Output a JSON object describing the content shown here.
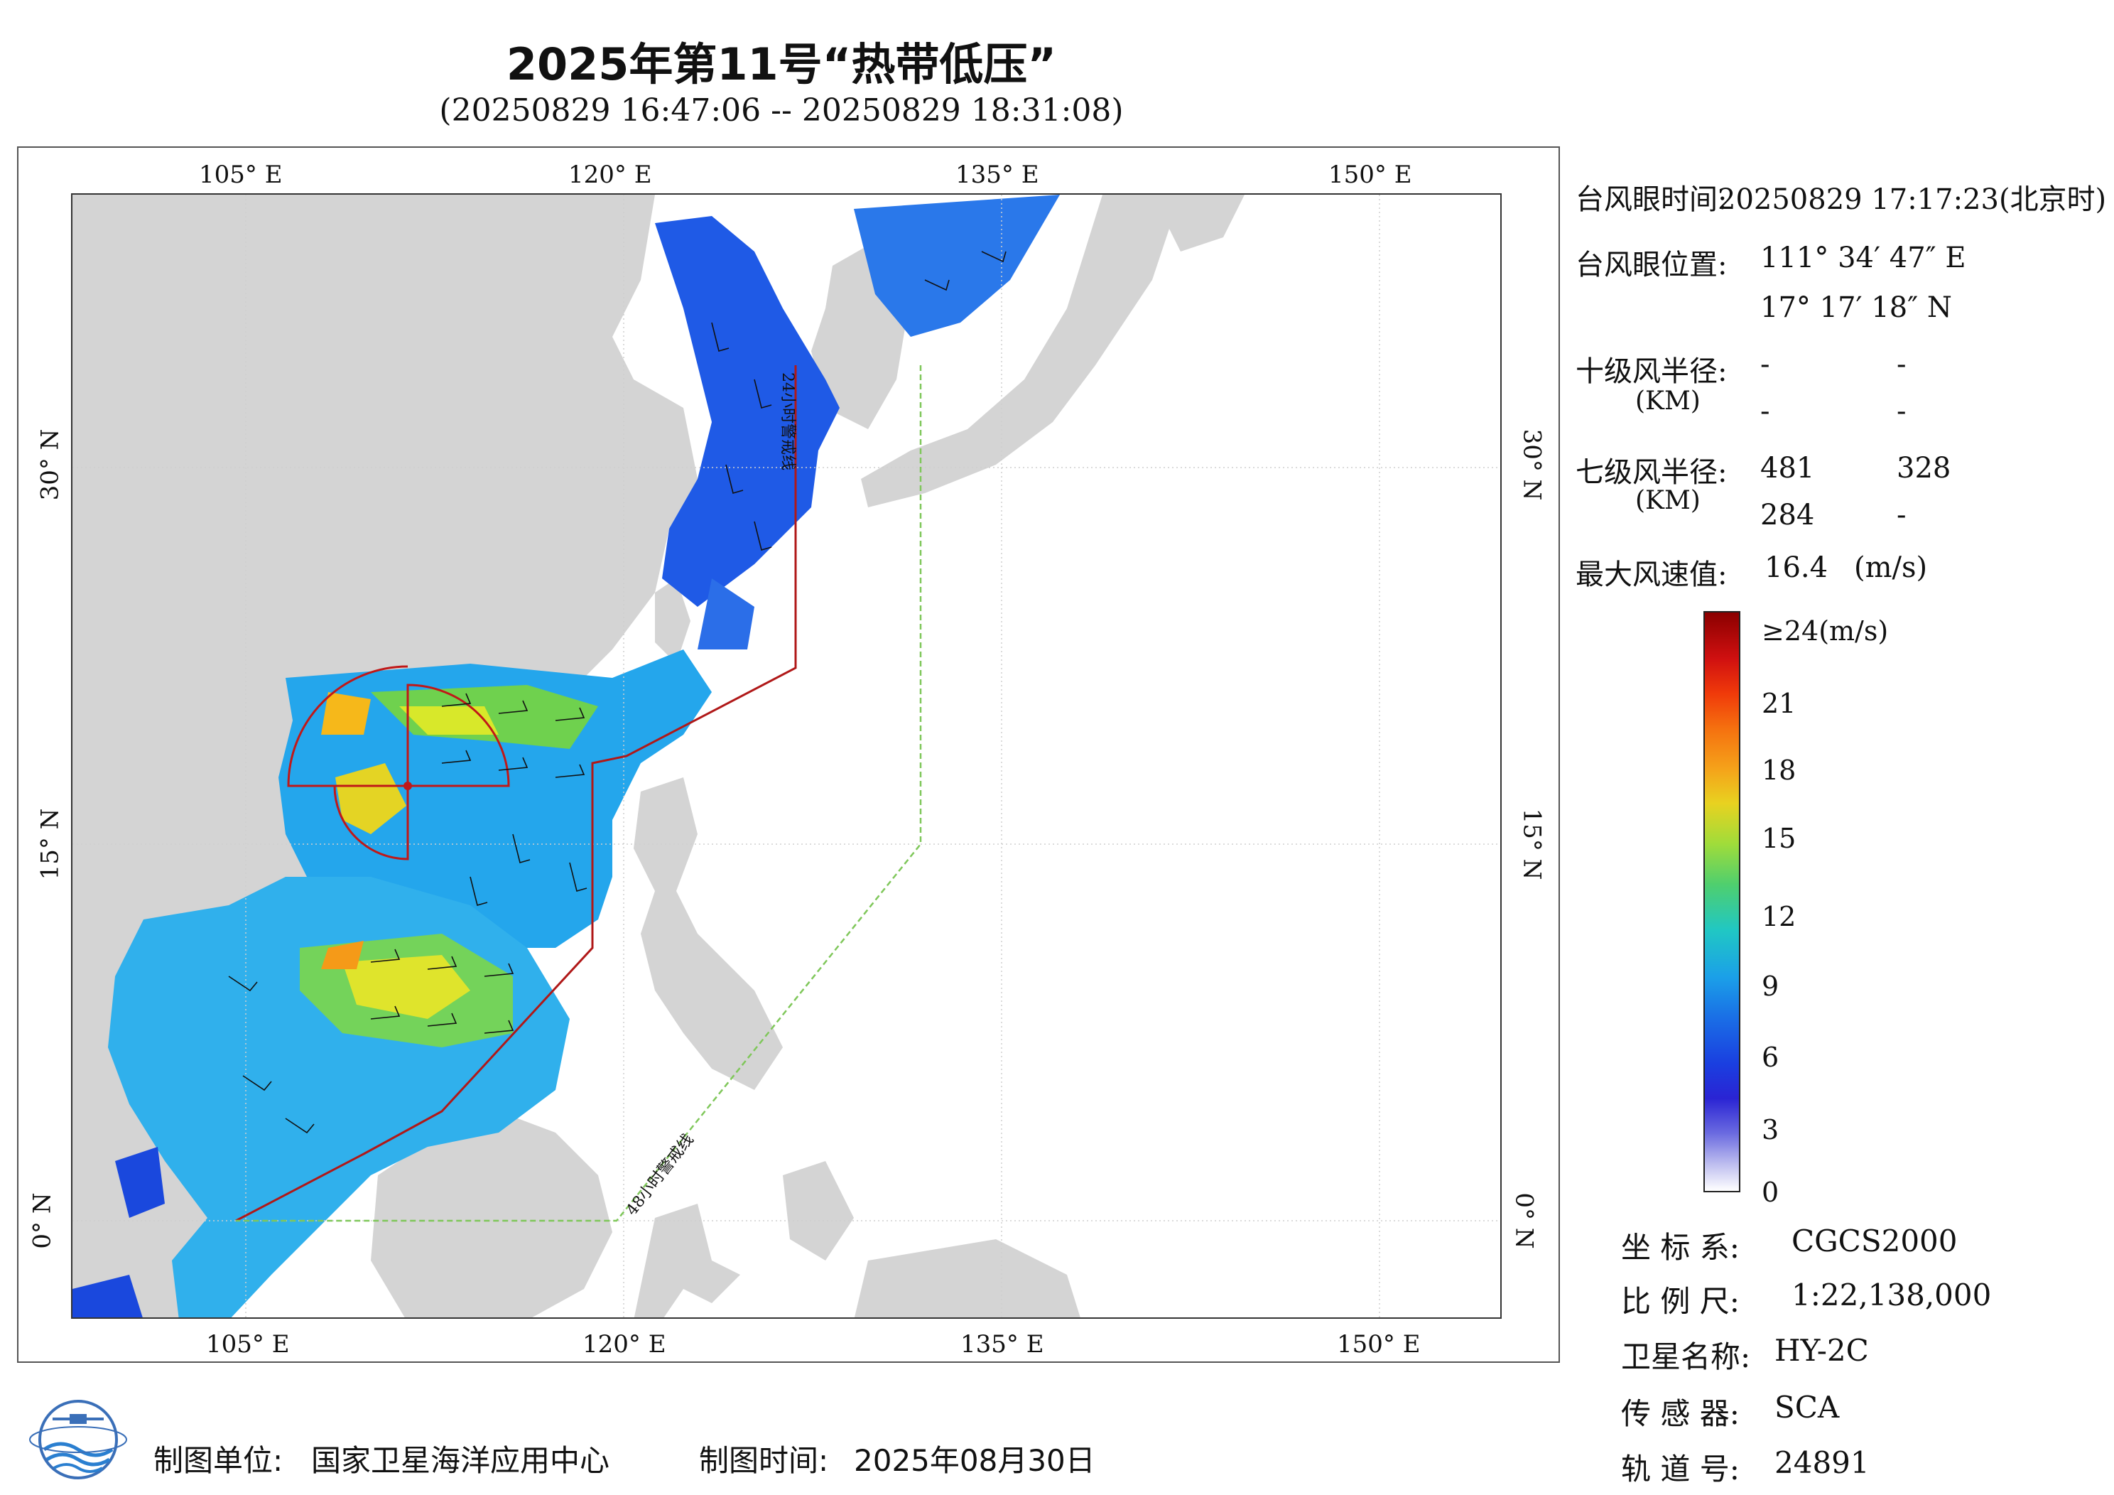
{
  "title": "2025年第11号“热带低压”",
  "subtitle": "(20250829 16:47:06 -- 20250829 18:31:08)",
  "map": {
    "lon_top": [
      "105° E",
      "120° E",
      "135° E",
      "150° E"
    ],
    "lon_bottom": [
      "105° E",
      "120° E",
      "135° E",
      "150° E"
    ],
    "lat_left": [
      "30° N",
      "15° N",
      "0° N"
    ],
    "lat_right": [
      "30° N",
      "15° N",
      "0° N"
    ],
    "line_24h": "24小时警戒线",
    "line_48h": "48小时警戒线",
    "colors": {
      "land": "#d4d4d4",
      "sea": "#ffffff",
      "warn24": "#b01818",
      "warn48": "#7fc75a"
    }
  },
  "info": {
    "eye_time_label": "台风眼时间:",
    "eye_time_value": "20250829 17:17:23(北京时)",
    "eye_pos_label": "台风眼位置:",
    "eye_lon": "111° 34′ 47″ E",
    "eye_lat": "17° 17′ 18″ N",
    "r10_label": "十级风半径:",
    "r10_unit": "(KM)",
    "r10_values": [
      "-",
      "-",
      "-",
      "-"
    ],
    "r7_label": "七级风半径:",
    "r7_unit": "(KM)",
    "r7_values": [
      "481",
      "328",
      "284",
      "-"
    ],
    "max_wind_label": "最大风速值:",
    "max_wind_value": "16.4",
    "max_wind_unit": "(m/s)"
  },
  "colorbar": {
    "labels": [
      "≥24(m/s)",
      "21",
      "18",
      "15",
      "12",
      "9",
      "6",
      "3",
      "0"
    ],
    "values": [
      24,
      21,
      18,
      15,
      12,
      9,
      6,
      3,
      0
    ]
  },
  "meta": {
    "crs_label": "坐 标 系:",
    "crs_value": "CGCS2000",
    "scale_label": "比 例 尺:",
    "scale_value": "1:22,138,000",
    "sat_label": "卫星名称:",
    "sat_value": "HY-2C",
    "sensor_label": "传 感 器:",
    "sensor_value": "SCA",
    "orbit_label": "轨 道 号:",
    "orbit_value": "24891"
  },
  "footer": {
    "unit_label": "制图单位:",
    "unit_value": "国家卫星海洋应用中心",
    "date_label": "制图时间:",
    "date_value": "2025年08月30日"
  }
}
